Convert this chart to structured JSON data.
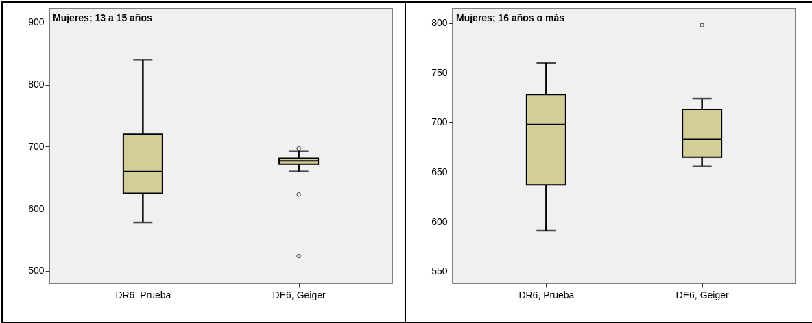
{
  "chart_data": [
    {
      "type": "box",
      "title": "Mujeres; 13 a 15 años",
      "categories": [
        "DR6, Prueba",
        "DE6, Geiger"
      ],
      "color": "#d3ce98",
      "ylim": [
        480,
        923
      ],
      "yticks": [
        500,
        600,
        700,
        800,
        900
      ],
      "grid": false,
      "boxes": [
        {
          "low": 578,
          "q1": 625,
          "median": 660,
          "q3": 720,
          "high": 840
        },
        {
          "low": 660,
          "q1": 672,
          "median": 677,
          "q3": 681,
          "high": 693,
          "outliers": [
            697,
            623,
            524
          ]
        }
      ]
    },
    {
      "type": "box",
      "title": "Mujeres; 16 años o más",
      "categories": [
        "DR6, Prueba",
        "DE6, Geiger"
      ],
      "color": "#d3ce98",
      "ylim": [
        538,
        815
      ],
      "yticks": [
        550,
        600,
        650,
        700,
        750,
        800
      ],
      "grid": false,
      "boxes": [
        {
          "low": 591,
          "q1": 637,
          "median": 698,
          "q3": 728,
          "high": 760
        },
        {
          "low": 656,
          "q1": 665,
          "median": 683,
          "q3": 713,
          "high": 724,
          "outliers": [
            798
          ]
        }
      ]
    }
  ]
}
